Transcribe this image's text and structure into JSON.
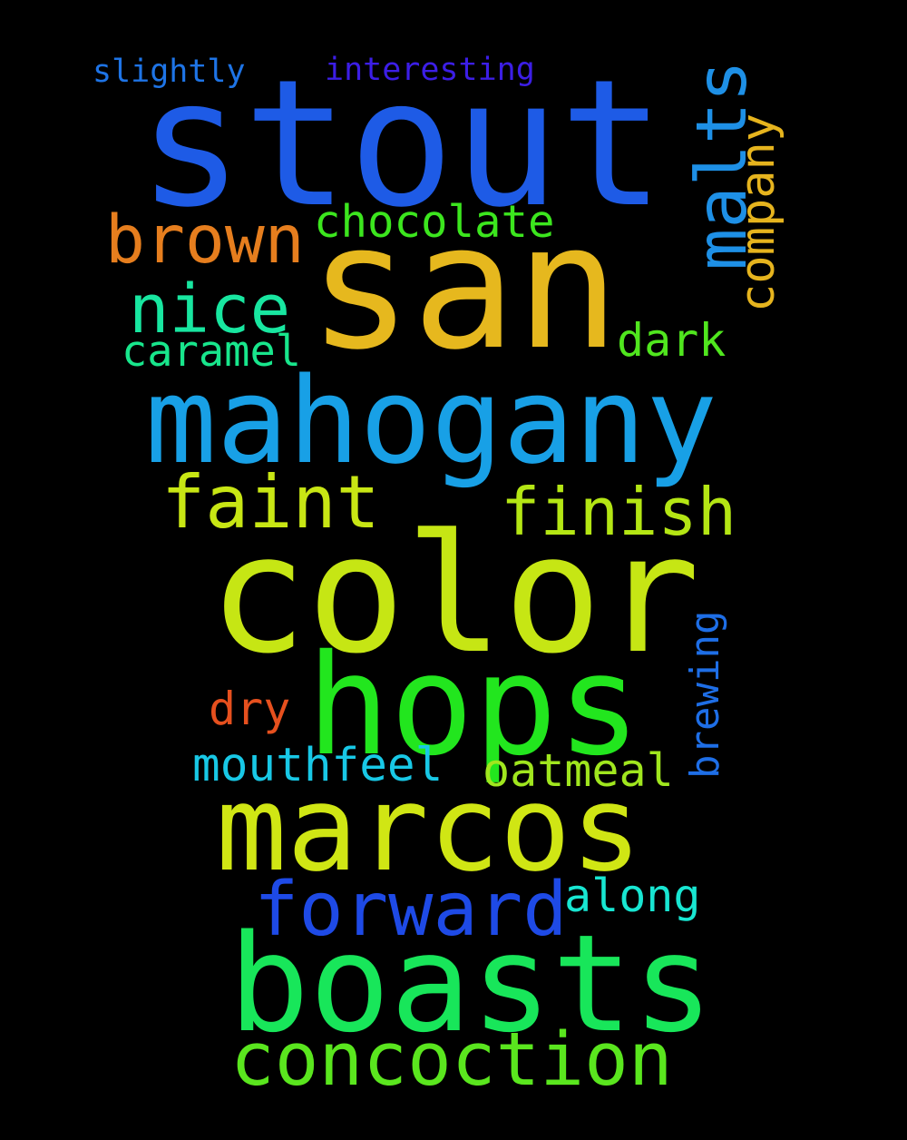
{
  "background_color": "#000000",
  "words": [
    {
      "id": "stout",
      "text": "stout",
      "color": "#1e5be6"
    },
    {
      "id": "san",
      "text": "san",
      "color": "#e6b81e"
    },
    {
      "id": "mahogany",
      "text": "mahogany",
      "color": "#18a0e6"
    },
    {
      "id": "color",
      "text": "color",
      "color": "#c6e614"
    },
    {
      "id": "hops",
      "text": "hops",
      "color": "#22e61e"
    },
    {
      "id": "marcos",
      "text": "marcos",
      "color": "#d0e614"
    },
    {
      "id": "boasts",
      "text": "boasts",
      "color": "#18e65a"
    },
    {
      "id": "concoction",
      "text": "concoction",
      "color": "#5ae61e"
    },
    {
      "id": "forward",
      "text": "forward",
      "color": "#1e4ae6"
    },
    {
      "id": "brown",
      "text": "brown",
      "color": "#e67e1e"
    },
    {
      "id": "nice",
      "text": "nice",
      "color": "#18e6a0"
    },
    {
      "id": "chocolate",
      "text": "chocolate",
      "color": "#3ce61e"
    },
    {
      "id": "faint",
      "text": "faint",
      "color": "#c8e614"
    },
    {
      "id": "finish",
      "text": "finish",
      "color": "#b4e614"
    },
    {
      "id": "malts",
      "text": "malts",
      "color": "#1e90e6"
    },
    {
      "id": "company",
      "text": "company",
      "color": "#e6b41e"
    },
    {
      "id": "caramel",
      "text": "caramel",
      "color": "#18e68c"
    },
    {
      "id": "dark",
      "text": "dark",
      "color": "#50e61e"
    },
    {
      "id": "slightly",
      "text": "slightly",
      "color": "#1e74e6"
    },
    {
      "id": "interesting",
      "text": "interesting",
      "color": "#3c1ee6"
    },
    {
      "id": "brewing",
      "text": "brewing",
      "color": "#1e6ee6"
    },
    {
      "id": "dry",
      "text": "dry",
      "color": "#e6501e"
    },
    {
      "id": "mouthfeel",
      "text": "mouthfeel",
      "color": "#18c8e6"
    },
    {
      "id": "oatmeal",
      "text": "oatmeal",
      "color": "#a0e61e"
    },
    {
      "id": "along",
      "text": "along",
      "color": "#18e6d2"
    }
  ]
}
